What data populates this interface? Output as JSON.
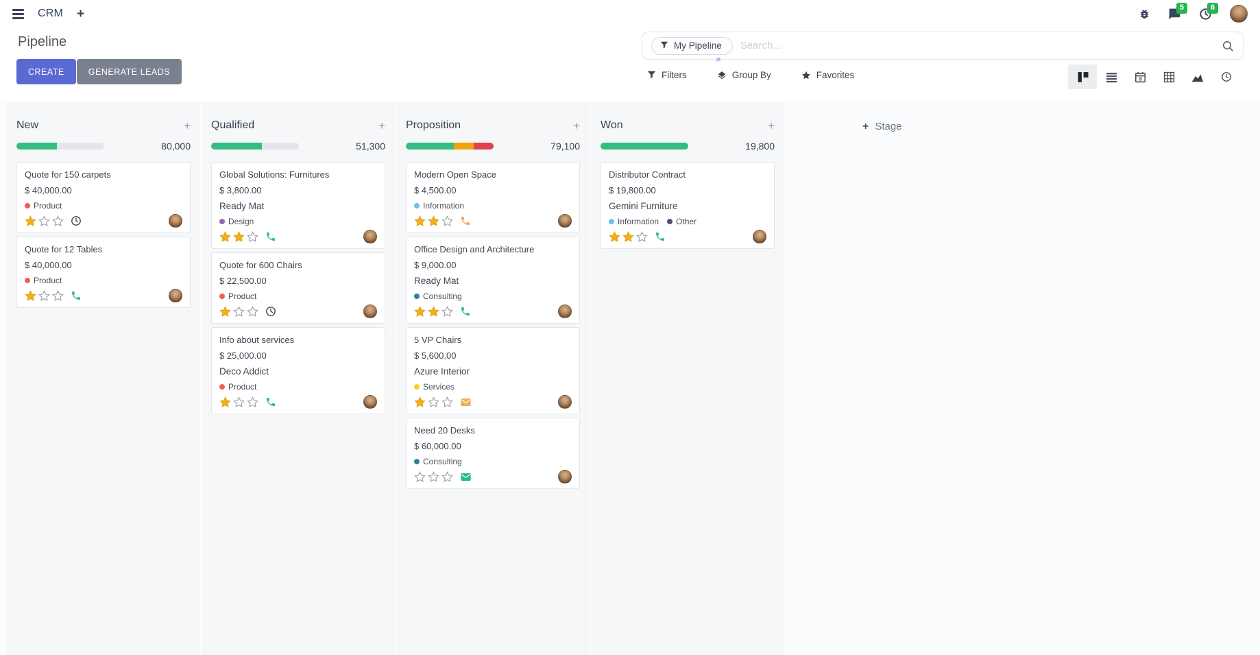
{
  "colors": {
    "create_button": "#5b6ad3",
    "generate_button": "#7b8090",
    "badge_green": "#28b550",
    "progress_green": "#35bd81",
    "progress_orange": "#f0a30f",
    "progress_red": "#e0424c",
    "star_filled": "#f0b01f"
  },
  "navbar": {
    "app_name": "CRM",
    "chat_badge": "5",
    "activity_badge": "6",
    "icons": [
      "menu-icon",
      "plus-tab-icon",
      "bug-icon",
      "chat-icon",
      "clock-icon",
      "avatar"
    ]
  },
  "cp": {
    "title": "Pipeline",
    "create_label": "CREATE",
    "generate_label": "GENERATE LEADS",
    "search": {
      "facet_label": "My Pipeline",
      "placeholder": "Search..."
    },
    "menus": {
      "filters": "Filters",
      "group_by": "Group By",
      "favorites": "Favorites"
    },
    "active_view": "kanban",
    "view_switcher": [
      "kanban",
      "list",
      "calendar",
      "pivot",
      "graph",
      "activity"
    ]
  },
  "board": {
    "add_stage_label": "Stage",
    "columns": [
      {
        "name": "New",
        "counter": "80,000",
        "progress": [
          {
            "color": "green",
            "pct": 46
          }
        ],
        "cards": [
          {
            "title": "Quote for 150 carpets",
            "amount": "$ 40,000.00",
            "partner": null,
            "tags": [
              {
                "label": "Product",
                "color": "#f06050"
              }
            ],
            "stars": 1,
            "activity": {
              "type": "clock",
              "color": "#3c4756"
            }
          },
          {
            "title": "Quote for 12 Tables",
            "amount": "$ 40,000.00",
            "partner": null,
            "tags": [
              {
                "label": "Product",
                "color": "#f06050"
              }
            ],
            "stars": 1,
            "activity": {
              "type": "phone",
              "color": "#2dbd7f"
            }
          }
        ]
      },
      {
        "name": "Qualified",
        "counter": "51,300",
        "progress": [
          {
            "color": "green",
            "pct": 58
          }
        ],
        "cards": [
          {
            "title": "Global Solutions: Furnitures",
            "amount": "$ 3,800.00",
            "partner": "Ready Mat",
            "tags": [
              {
                "label": "Design",
                "color": "#9365b8"
              }
            ],
            "stars": 2,
            "activity": {
              "type": "phone",
              "color": "#2dbd7f"
            }
          },
          {
            "title": "Quote for 600 Chairs",
            "amount": "$ 22,500.00",
            "partner": null,
            "tags": [
              {
                "label": "Product",
                "color": "#f06050"
              }
            ],
            "stars": 1,
            "activity": {
              "type": "clock",
              "color": "#3c4756"
            }
          },
          {
            "title": "Info about services",
            "amount": "$ 25,000.00",
            "partner": "Deco Addict",
            "tags": [
              {
                "label": "Product",
                "color": "#f06050"
              }
            ],
            "stars": 1,
            "activity": {
              "type": "phone",
              "color": "#2dbd7f"
            }
          }
        ]
      },
      {
        "name": "Proposition",
        "counter": "79,100",
        "progress": [
          {
            "color": "green",
            "pct": 55
          },
          {
            "color": "orange",
            "pct": 22
          },
          {
            "color": "red",
            "pct": 23
          }
        ],
        "cards": [
          {
            "title": "Modern Open Space",
            "amount": "$ 4,500.00",
            "partner": null,
            "tags": [
              {
                "label": "Information",
                "color": "#6cc1ed"
              }
            ],
            "stars": 2,
            "activity": {
              "type": "phone",
              "color": "#eba45c"
            }
          },
          {
            "title": "Office Design and Architecture",
            "amount": "$ 9,000.00",
            "partner": "Ready Mat",
            "tags": [
              {
                "label": "Consulting",
                "color": "#2c8397"
              }
            ],
            "stars": 2,
            "activity": {
              "type": "phone",
              "color": "#2dbd7f"
            }
          },
          {
            "title": "5 VP Chairs",
            "amount": "$ 5,600.00",
            "partner": "Azure Interior",
            "tags": [
              {
                "label": "Services",
                "color": "#f7cd1f"
              }
            ],
            "stars": 1,
            "activity": {
              "type": "envelope",
              "color": "#eeb050"
            }
          },
          {
            "title": "Need 20 Desks",
            "amount": "$ 60,000.00",
            "partner": null,
            "tags": [
              {
                "label": "Consulting",
                "color": "#2c8397"
              }
            ],
            "stars": 0,
            "activity": {
              "type": "envelope",
              "color": "#2dbd7f"
            }
          }
        ]
      },
      {
        "name": "Won",
        "counter": "19,800",
        "progress": [
          {
            "color": "green",
            "pct": 100
          }
        ],
        "cards": [
          {
            "title": "Distributor Contract",
            "amount": "$ 19,800.00",
            "partner": "Gemini Furniture",
            "tags": [
              {
                "label": "Information",
                "color": "#6cc1ed"
              },
              {
                "label": "Other",
                "color": "#475577"
              }
            ],
            "stars": 2,
            "activity": {
              "type": "phone",
              "color": "#2dbd7f"
            }
          }
        ]
      }
    ]
  }
}
